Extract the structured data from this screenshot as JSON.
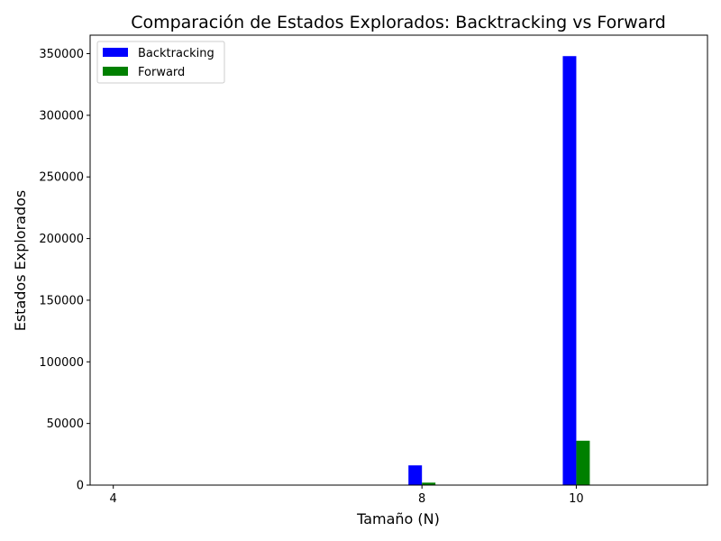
{
  "chart_data": {
    "type": "bar",
    "title": "Comparación de Estados Explorados: Backtracking vs Forward",
    "xlabel": "Tamaño (N)",
    "ylabel": "Estados Explorados",
    "x": [
      4,
      8,
      10
    ],
    "x_tick_labels": [
      "4",
      "8",
      "10"
    ],
    "xlim": [
      3.7,
      11.7
    ],
    "ylim": [
      0,
      365000
    ],
    "y_ticks": [
      0,
      50000,
      100000,
      150000,
      200000,
      250000,
      300000,
      350000
    ],
    "y_tick_labels": [
      "0",
      "50000",
      "100000",
      "150000",
      "200000",
      "250000",
      "300000",
      "350000"
    ],
    "bar_width": 0.35,
    "grid": false,
    "legend_position": "top-left",
    "series": [
      {
        "name": "Backtracking",
        "color": "#0000ff",
        "values": [
          20,
          16000,
          348000
        ]
      },
      {
        "name": "Forward",
        "color": "#008000",
        "values": [
          10,
          2000,
          36000
        ]
      }
    ]
  }
}
